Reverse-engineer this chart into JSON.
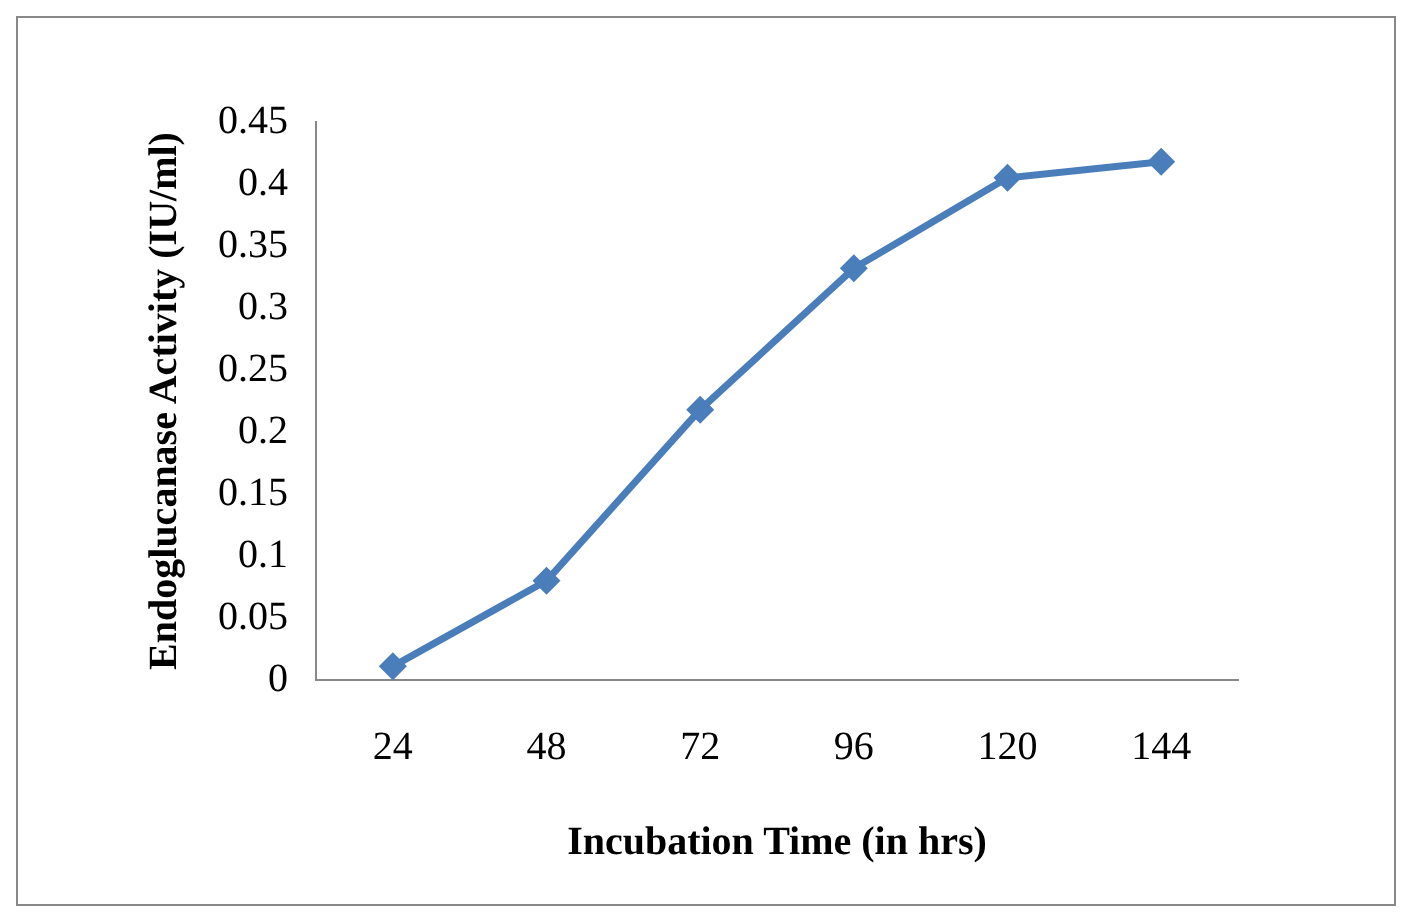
{
  "chart_data": {
    "type": "line",
    "xlabel": "Incubation Time (in hrs)",
    "ylabel": "Endoglucanase Activity (IU/ml)",
    "categories": [
      "24",
      "48",
      "72",
      "96",
      "120",
      "144"
    ],
    "series": [
      {
        "color": "#4a7ebb",
        "values": [
          0.011,
          0.08,
          0.218,
          0.332,
          0.405,
          0.418
        ]
      }
    ],
    "ylim": [
      0,
      0.45
    ],
    "yticks": [
      0,
      0.05,
      0.1,
      0.15,
      0.2,
      0.25,
      0.3,
      0.35,
      0.4,
      0.45
    ],
    "marker": "diamond",
    "grid": false,
    "legend": false
  }
}
